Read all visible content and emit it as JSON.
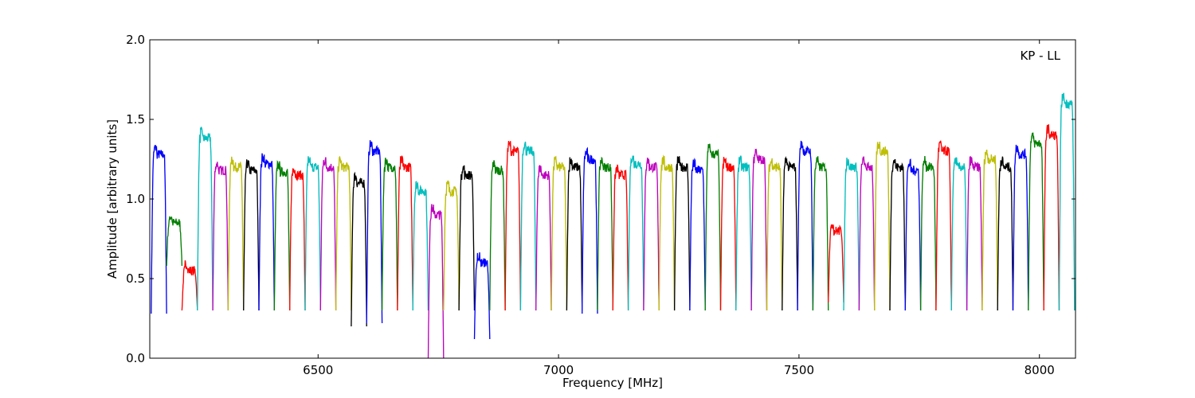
{
  "chart_data": {
    "type": "line",
    "annotation": "KP - LL",
    "xlabel": "Frequency [MHz]",
    "ylabel": "Amplitude [arbitrary units]",
    "xlim": [
      6150,
      8075
    ],
    "ylim": [
      0.0,
      2.0
    ],
    "x_ticks": [
      6500,
      7000,
      7500,
      8000
    ],
    "x_tick_labels": [
      "6500",
      "7000",
      "7500",
      "8000"
    ],
    "y_ticks": [
      0.0,
      0.5,
      1.0,
      1.5,
      2.0
    ],
    "y_tick_labels": [
      "0.0",
      "0.5",
      "1.0",
      "1.5",
      "2.0"
    ],
    "grid": false,
    "legend": "none",
    "raw_color": "#c0c0c0",
    "palette": [
      "#0000ff",
      "#008000",
      "#ff0000",
      "#00bfbf",
      "#bf00bf",
      "#bfbf00",
      "#000000"
    ],
    "channel_width_mhz": 32,
    "channel_starts_mhz": [
      6153,
      6185,
      6217,
      6249,
      6281,
      6313,
      6345,
      6377,
      6409,
      6441,
      6473,
      6505,
      6537,
      6569,
      6601,
      6633,
      6665,
      6697,
      6729,
      6761,
      6793,
      6825,
      6857,
      6889,
      6921,
      6953,
      6985,
      7017,
      7049,
      7081,
      7113,
      7145,
      7177,
      7209,
      7241,
      7273,
      7305,
      7337,
      7369,
      7401,
      7433,
      7465,
      7497,
      7529,
      7561,
      7593,
      7625,
      7657,
      7689,
      7721,
      7753,
      7785,
      7817,
      7849,
      7881,
      7913,
      7945,
      7977,
      8009,
      8041
    ],
    "channel_levels": [
      1.28,
      0.85,
      0.55,
      1.38,
      1.18,
      1.2,
      1.18,
      1.22,
      1.17,
      1.15,
      1.2,
      1.2,
      1.2,
      1.1,
      1.3,
      1.2,
      1.2,
      1.05,
      0.9,
      1.05,
      1.15,
      0.6,
      1.18,
      1.3,
      1.3,
      1.15,
      1.2,
      1.2,
      1.25,
      1.2,
      1.15,
      1.22,
      1.2,
      1.2,
      1.2,
      1.18,
      1.28,
      1.2,
      1.2,
      1.25,
      1.2,
      1.2,
      1.3,
      1.2,
      0.8,
      1.2,
      1.2,
      1.3,
      1.2,
      1.18,
      1.2,
      1.3,
      1.2,
      1.2,
      1.25,
      1.2,
      1.28,
      1.35,
      1.4,
      1.6
    ],
    "channel_lows": [
      0.28,
      0.58,
      0.3,
      0.3,
      0.3,
      0.3,
      0.3,
      0.3,
      0.3,
      0.3,
      0.3,
      0.3,
      0.3,
      0.2,
      0.22,
      0.3,
      0.3,
      0.3,
      0.0,
      0.3,
      0.3,
      0.12,
      0.3,
      0.3,
      0.3,
      0.3,
      0.3,
      0.3,
      0.28,
      0.3,
      0.3,
      0.3,
      0.3,
      0.3,
      0.3,
      0.3,
      0.3,
      0.3,
      0.3,
      0.3,
      0.3,
      0.3,
      0.3,
      0.3,
      0.35,
      0.3,
      0.3,
      0.3,
      0.3,
      0.3,
      0.3,
      0.3,
      0.3,
      0.3,
      0.3,
      0.3,
      0.3,
      0.3,
      0.3,
      0.3
    ]
  }
}
